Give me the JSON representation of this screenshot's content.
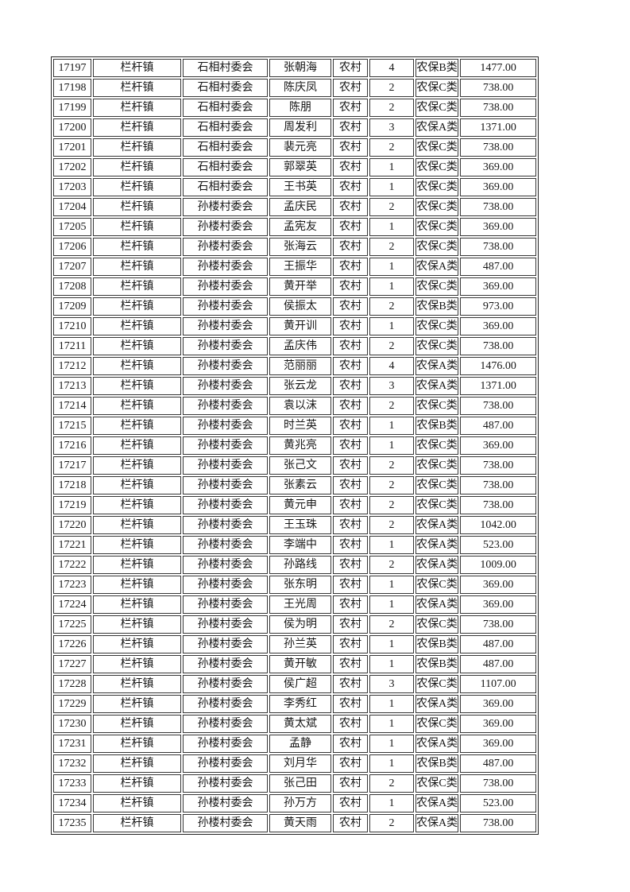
{
  "page": {
    "background_color": "#ffffff",
    "text_color": "#161616",
    "grid_border_color": "#363636",
    "outer_border_color": "#242424"
  },
  "table": {
    "column_keys": [
      "id",
      "town",
      "village_committee",
      "person_name",
      "residence_type",
      "count",
      "insurance_category",
      "amount"
    ],
    "rows": [
      [
        "17197",
        "栏杆镇",
        "石相村委会",
        "张朝海",
        "农村",
        "4",
        "农保B类",
        "1477.00"
      ],
      [
        "17198",
        "栏杆镇",
        "石相村委会",
        "陈庆凤",
        "农村",
        "2",
        "农保C类",
        "738.00"
      ],
      [
        "17199",
        "栏杆镇",
        "石相村委会",
        "陈朋",
        "农村",
        "2",
        "农保C类",
        "738.00"
      ],
      [
        "17200",
        "栏杆镇",
        "石相村委会",
        "周发利",
        "农村",
        "3",
        "农保A类",
        "1371.00"
      ],
      [
        "17201",
        "栏杆镇",
        "石相村委会",
        "裴元亮",
        "农村",
        "2",
        "农保C类",
        "738.00"
      ],
      [
        "17202",
        "栏杆镇",
        "石相村委会",
        "郭翠英",
        "农村",
        "1",
        "农保C类",
        "369.00"
      ],
      [
        "17203",
        "栏杆镇",
        "石相村委会",
        "王书英",
        "农村",
        "1",
        "农保C类",
        "369.00"
      ],
      [
        "17204",
        "栏杆镇",
        "孙楼村委会",
        "孟庆民",
        "农村",
        "2",
        "农保C类",
        "738.00"
      ],
      [
        "17205",
        "栏杆镇",
        "孙楼村委会",
        "孟宪友",
        "农村",
        "1",
        "农保C类",
        "369.00"
      ],
      [
        "17206",
        "栏杆镇",
        "孙楼村委会",
        "张海云",
        "农村",
        "2",
        "农保C类",
        "738.00"
      ],
      [
        "17207",
        "栏杆镇",
        "孙楼村委会",
        "王振华",
        "农村",
        "1",
        "农保A类",
        "487.00"
      ],
      [
        "17208",
        "栏杆镇",
        "孙楼村委会",
        "黄开举",
        "农村",
        "1",
        "农保C类",
        "369.00"
      ],
      [
        "17209",
        "栏杆镇",
        "孙楼村委会",
        "侯振太",
        "农村",
        "2",
        "农保B类",
        "973.00"
      ],
      [
        "17210",
        "栏杆镇",
        "孙楼村委会",
        "黄开训",
        "农村",
        "1",
        "农保C类",
        "369.00"
      ],
      [
        "17211",
        "栏杆镇",
        "孙楼村委会",
        "孟庆伟",
        "农村",
        "2",
        "农保C类",
        "738.00"
      ],
      [
        "17212",
        "栏杆镇",
        "孙楼村委会",
        "范丽丽",
        "农村",
        "4",
        "农保A类",
        "1476.00"
      ],
      [
        "17213",
        "栏杆镇",
        "孙楼村委会",
        "张云龙",
        "农村",
        "3",
        "农保A类",
        "1371.00"
      ],
      [
        "17214",
        "栏杆镇",
        "孙楼村委会",
        "袁以沫",
        "农村",
        "2",
        "农保C类",
        "738.00"
      ],
      [
        "17215",
        "栏杆镇",
        "孙楼村委会",
        "时兰英",
        "农村",
        "1",
        "农保B类",
        "487.00"
      ],
      [
        "17216",
        "栏杆镇",
        "孙楼村委会",
        "黄兆亮",
        "农村",
        "1",
        "农保C类",
        "369.00"
      ],
      [
        "17217",
        "栏杆镇",
        "孙楼村委会",
        "张己文",
        "农村",
        "2",
        "农保C类",
        "738.00"
      ],
      [
        "17218",
        "栏杆镇",
        "孙楼村委会",
        "张素云",
        "农村",
        "2",
        "农保C类",
        "738.00"
      ],
      [
        "17219",
        "栏杆镇",
        "孙楼村委会",
        "黄元申",
        "农村",
        "2",
        "农保C类",
        "738.00"
      ],
      [
        "17220",
        "栏杆镇",
        "孙楼村委会",
        "王玉珠",
        "农村",
        "2",
        "农保A类",
        "1042.00"
      ],
      [
        "17221",
        "栏杆镇",
        "孙楼村委会",
        "李端中",
        "农村",
        "1",
        "农保A类",
        "523.00"
      ],
      [
        "17222",
        "栏杆镇",
        "孙楼村委会",
        "孙路线",
        "农村",
        "2",
        "农保A类",
        "1009.00"
      ],
      [
        "17223",
        "栏杆镇",
        "孙楼村委会",
        "张东明",
        "农村",
        "1",
        "农保C类",
        "369.00"
      ],
      [
        "17224",
        "栏杆镇",
        "孙楼村委会",
        "王光周",
        "农村",
        "1",
        "农保A类",
        "369.00"
      ],
      [
        "17225",
        "栏杆镇",
        "孙楼村委会",
        "侯为明",
        "农村",
        "2",
        "农保C类",
        "738.00"
      ],
      [
        "17226",
        "栏杆镇",
        "孙楼村委会",
        "孙兰英",
        "农村",
        "1",
        "农保B类",
        "487.00"
      ],
      [
        "17227",
        "栏杆镇",
        "孙楼村委会",
        "黄开敏",
        "农村",
        "1",
        "农保B类",
        "487.00"
      ],
      [
        "17228",
        "栏杆镇",
        "孙楼村委会",
        "侯广超",
        "农村",
        "3",
        "农保C类",
        "1107.00"
      ],
      [
        "17229",
        "栏杆镇",
        "孙楼村委会",
        "李秀红",
        "农村",
        "1",
        "农保A类",
        "369.00"
      ],
      [
        "17230",
        "栏杆镇",
        "孙楼村委会",
        "黄太斌",
        "农村",
        "1",
        "农保C类",
        "369.00"
      ],
      [
        "17231",
        "栏杆镇",
        "孙楼村委会",
        "孟静",
        "农村",
        "1",
        "农保A类",
        "369.00"
      ],
      [
        "17232",
        "栏杆镇",
        "孙楼村委会",
        "刘月华",
        "农村",
        "1",
        "农保B类",
        "487.00"
      ],
      [
        "17233",
        "栏杆镇",
        "孙楼村委会",
        "张己田",
        "农村",
        "2",
        "农保C类",
        "738.00"
      ],
      [
        "17234",
        "栏杆镇",
        "孙楼村委会",
        "孙万方",
        "农村",
        "1",
        "农保A类",
        "523.00"
      ],
      [
        "17235",
        "栏杆镇",
        "孙楼村委会",
        "黄天雨",
        "农村",
        "2",
        "农保A类",
        "738.00"
      ]
    ]
  }
}
